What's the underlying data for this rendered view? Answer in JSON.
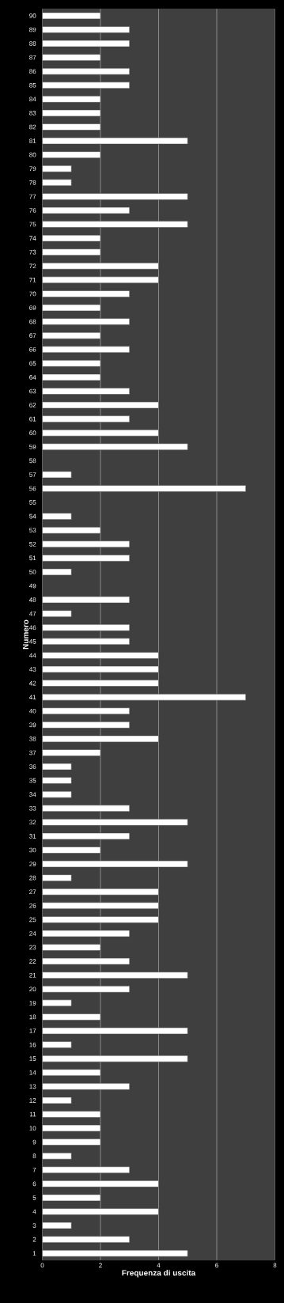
{
  "chart_data": {
    "type": "bar",
    "orientation": "horizontal",
    "xlabel": "Frequenza di uscita",
    "ylabel": "Numero",
    "categories": [
      "90",
      "89",
      "88",
      "87",
      "86",
      "85",
      "84",
      "83",
      "82",
      "81",
      "80",
      "79",
      "78",
      "77",
      "76",
      "75",
      "74",
      "73",
      "72",
      "71",
      "70",
      "69",
      "68",
      "67",
      "66",
      "65",
      "64",
      "63",
      "62",
      "61",
      "60",
      "59",
      "58",
      "57",
      "56",
      "55",
      "54",
      "53",
      "52",
      "51",
      "50",
      "49",
      "48",
      "47",
      "46",
      "45",
      "44",
      "43",
      "42",
      "41",
      "40",
      "39",
      "38",
      "37",
      "36",
      "35",
      "34",
      "33",
      "32",
      "31",
      "30",
      "29",
      "28",
      "27",
      "26",
      "25",
      "24",
      "23",
      "22",
      "21",
      "20",
      "19",
      "18",
      "17",
      "16",
      "15",
      "14",
      "13",
      "12",
      "11",
      "10",
      "9",
      "8",
      "7",
      "6",
      "5",
      "4",
      "3",
      "2",
      "1"
    ],
    "values": [
      2,
      3,
      3,
      2,
      3,
      3,
      2,
      2,
      2,
      5,
      2,
      1,
      1,
      5,
      3,
      5,
      2,
      2,
      4,
      4,
      3,
      2,
      3,
      2,
      3,
      2,
      2,
      3,
      4,
      3,
      4,
      5,
      0,
      1,
      7,
      0,
      1,
      2,
      3,
      3,
      1,
      0,
      3,
      1,
      3,
      3,
      4,
      4,
      4,
      7,
      3,
      3,
      4,
      2,
      1,
      1,
      1,
      3,
      5,
      3,
      2,
      5,
      1,
      4,
      4,
      4,
      3,
      2,
      3,
      5,
      3,
      1,
      2,
      5,
      1,
      5,
      2,
      3,
      1,
      2,
      2,
      2,
      1,
      3,
      4,
      2,
      4,
      1,
      3,
      5
    ],
    "color": "#ffffff",
    "xlim": [
      0,
      8
    ],
    "xticks": [
      0,
      2,
      4,
      6,
      8
    ],
    "grid": "x"
  }
}
